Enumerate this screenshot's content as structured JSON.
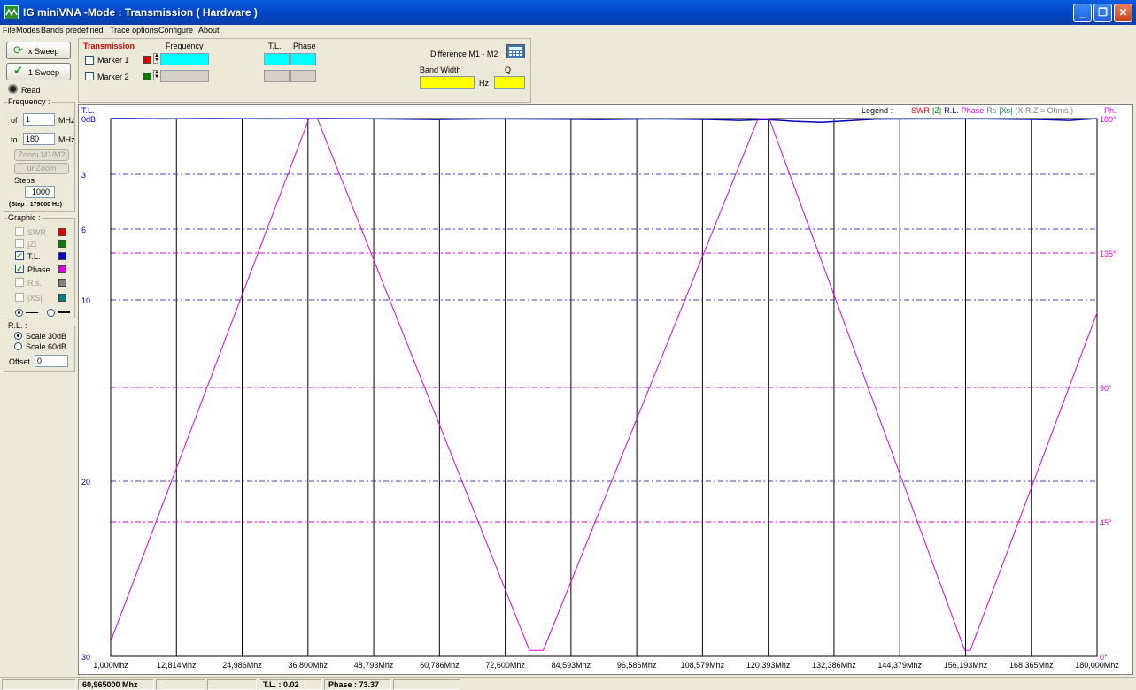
{
  "window": {
    "title": "IG miniVNA -Mode : Transmission ( Hardware )",
    "minimize": "_",
    "maximize": "❐",
    "close": "✕"
  },
  "menu": [
    "File",
    "Modes",
    "Bands predefined",
    "Trace options",
    "Configure",
    "About"
  ],
  "left": {
    "x_sweep": "x Sweep",
    "one_sweep": "1 Sweep",
    "read": "Read",
    "frequency_label": "Frequency :",
    "of_label": "of",
    "from_value": "1",
    "to_label": "to",
    "to_value": "180",
    "mhz": "MHz",
    "zoom_m1m2": "Zoom M1/M2",
    "unzoom": "unZoom",
    "steps_label": "Steps",
    "steps_value": "1000",
    "step_info": "(Step : 179000 Hz)",
    "graphic_label": "Graphic :",
    "graphic_items": [
      {
        "label": "SWR",
        "checked": false,
        "color": "#e00000"
      },
      {
        "label": "|Z|",
        "checked": false,
        "color": "#008000"
      },
      {
        "label": "T.L.",
        "checked": true,
        "color": "#0000e0"
      },
      {
        "label": "Phase",
        "checked": true,
        "color": "#e000e0"
      },
      {
        "label": "R.s.",
        "checked": false,
        "color": "#808080"
      },
      {
        "label": "|XS|",
        "checked": false,
        "color": "#008080"
      }
    ],
    "rl_label": "R.L. :",
    "scale30": "Scale 30dB",
    "scale60": "Scale 60dB",
    "offset_label": "Offset",
    "offset_value": "0"
  },
  "markers": {
    "transmission": "Transmission",
    "frequency": "Frequency",
    "tl": "T.L.",
    "phase": "Phase",
    "marker1": "Marker 1",
    "marker2": "Marker 2",
    "marker1_color": "#e00000",
    "marker2_color": "#008000",
    "difference": "Difference M1 - M2",
    "bandwidth": "Band Width",
    "q": "Q",
    "hz": "Hz"
  },
  "chart_data": {
    "type": "line",
    "left_axis_title": "T.L.",
    "right_axis_title": "Ph.",
    "legend_label": "Legend :",
    "legend": [
      {
        "text": "SWR",
        "color": "#e00000"
      },
      {
        "text": "|Z|",
        "color": "#008000"
      },
      {
        "text": "R.L.",
        "color": "#0000e0"
      },
      {
        "text": "Phase",
        "color": "#e000e0"
      },
      {
        "text": "Rs",
        "color": "#808080"
      },
      {
        "text": "|Xs|",
        "color": "#008080"
      },
      {
        "text": "(X,R,Z = Ohms.)",
        "color": "#808080"
      }
    ],
    "x_ticks": [
      "1,000Mhz",
      "12,814Mhz",
      "24,986Mhz",
      "36,800Mhz",
      "48,793Mhz",
      "60,786Mhz",
      "72,600Mhz",
      "84,593Mhz",
      "96,586Mhz",
      "108,579Mhz",
      "120,393Mhz",
      "132,386Mhz",
      "144,379Mhz",
      "156,193Mhz",
      "168,365Mhz",
      "180,000Mhz"
    ],
    "xlim": [
      1,
      180
    ],
    "y_left_ticks": [
      {
        "label": "0dB",
        "value": 0
      },
      {
        "label": "3",
        "value": 3
      },
      {
        "label": "6",
        "value": 6
      },
      {
        "label": "10",
        "value": 10
      },
      {
        "label": "20",
        "value": 20
      },
      {
        "label": "30",
        "value": 30
      }
    ],
    "y_right_ticks": [
      {
        "label": "180°",
        "value": 180
      },
      {
        "label": "135°",
        "value": 135
      },
      {
        "label": "90°",
        "value": 90
      },
      {
        "label": "45°",
        "value": 45
      },
      {
        "label": "0°",
        "value": 0
      }
    ],
    "series": [
      {
        "name": "T.L.",
        "color": "#0000c0",
        "x": [
          1,
          5,
          10,
          20,
          30,
          40,
          50,
          60,
          70,
          80,
          90,
          100,
          110,
          115,
          120,
          125,
          130,
          140,
          150,
          160,
          170,
          175,
          180
        ],
        "values": [
          0,
          0,
          0.02,
          0,
          0.02,
          0,
          0.02,
          0.05,
          0.02,
          0.03,
          0.05,
          0.02,
          0.05,
          0.1,
          0.05,
          0.15,
          0.2,
          0.03,
          0.02,
          0.02,
          0.05,
          0.1,
          0
        ]
      },
      {
        "name": "Phase",
        "color": "#e000e0",
        "x": [
          1,
          37,
          38.5,
          77,
          79.5,
          118.5,
          120.5,
          156,
          157,
          180
        ],
        "values": [
          5,
          180,
          180,
          2,
          2,
          180,
          180,
          2,
          2,
          115
        ]
      }
    ]
  },
  "status": {
    "frequency": "60,965000 Mhz",
    "tl": "T.L. : 0.02",
    "phase": "Phase : 73.37"
  }
}
